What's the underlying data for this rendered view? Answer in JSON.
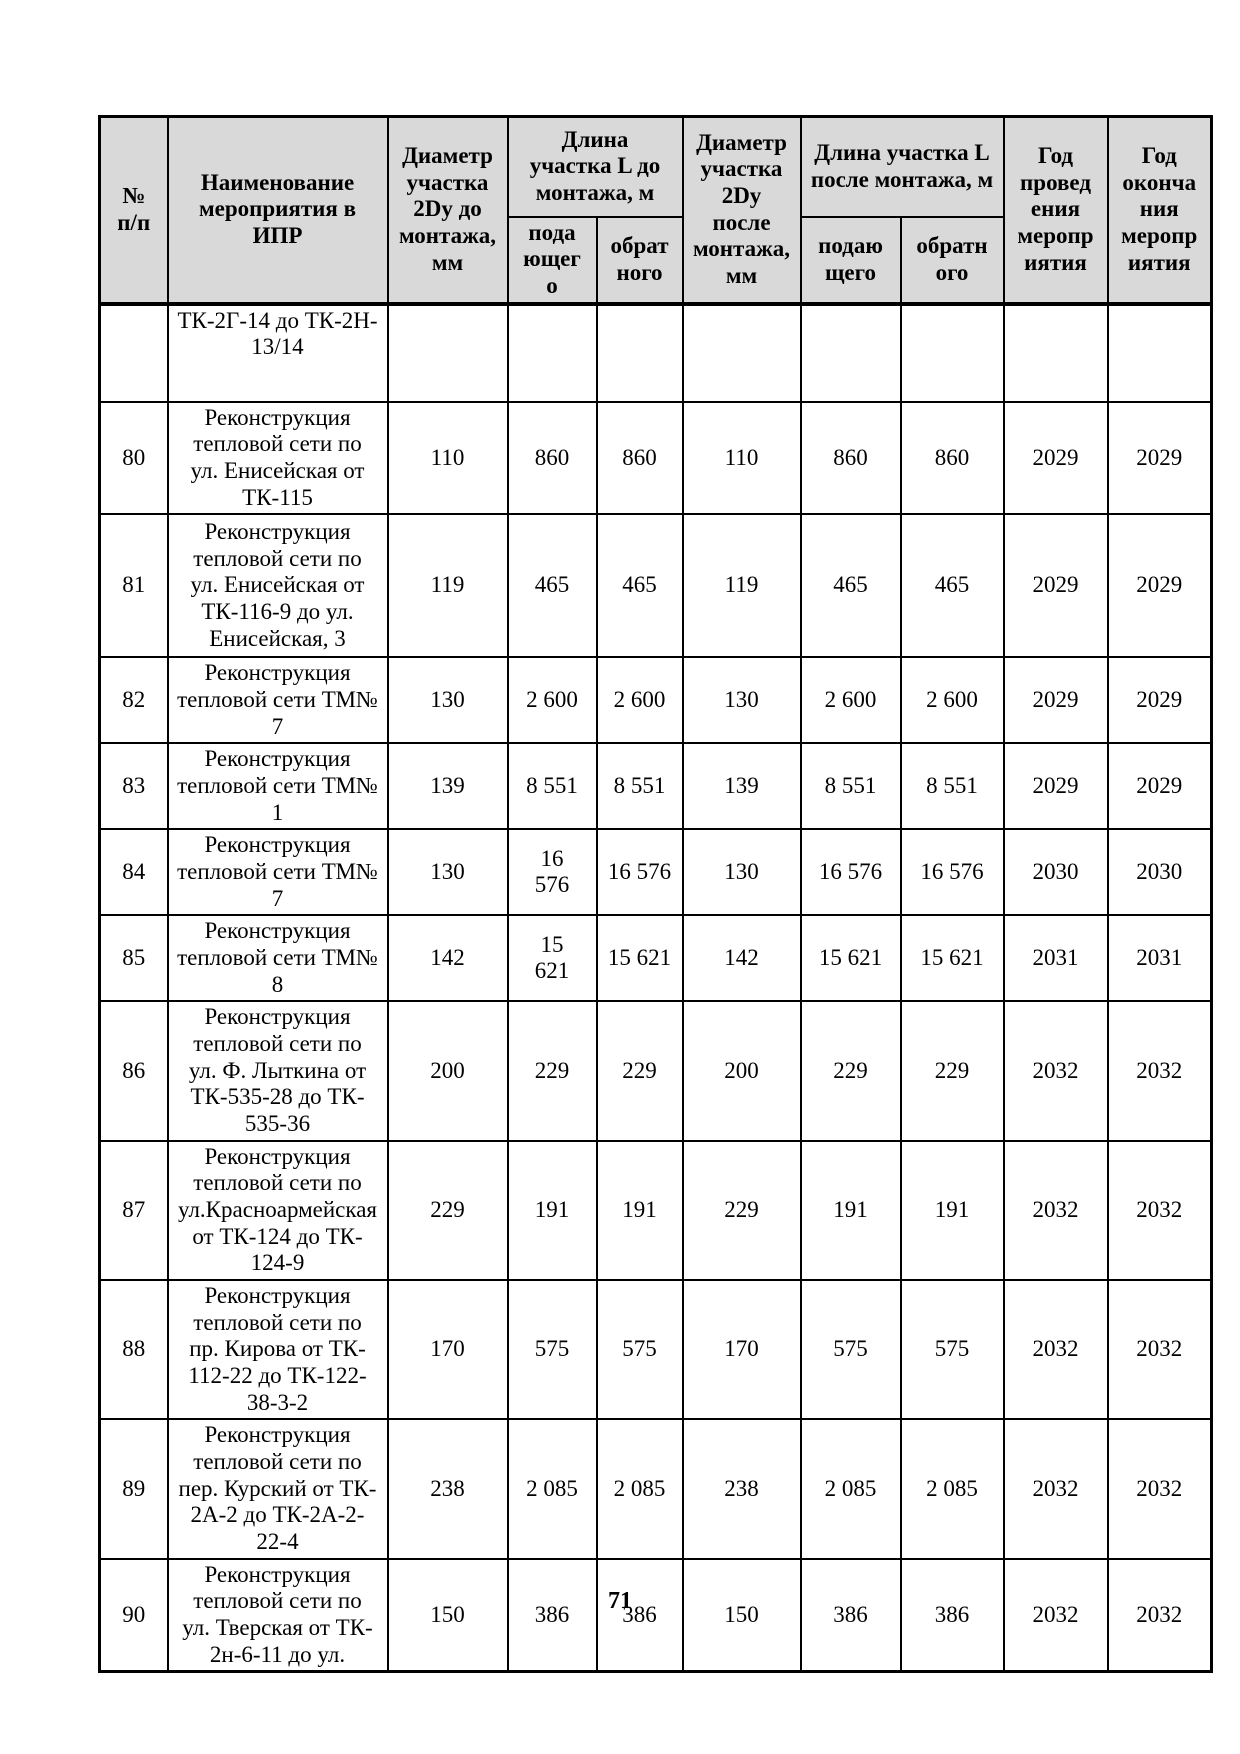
{
  "page": {
    "number": "71",
    "background": "#ffffff"
  },
  "table": {
    "header_bg": "#d9d9d9",
    "header": {
      "col_num": "№\nп/п",
      "col_name": "Наименование\nмероприятия в\nИПР",
      "col_diameter_before": "Диаметр\nучастка\n2Dy до\nмонтажа,\nмм",
      "group_length_before": "Длина\nучастка L до\nмонтажа, м",
      "col_diameter_after": "Диаметр\nучастка\n2Dy\nпосле\nмонтажа,\nмм",
      "group_length_after": "Длина участка L\nпосле монтажа, м",
      "col_year_start": "Год\nпровед\nения\nмеропр\nиятия",
      "col_year_end": "Год\nоконча\nния\nмеропр\nиятия",
      "sub_supply_before": "пода\nющег\nо",
      "sub_return_before": "обрат\nного",
      "sub_supply_after": "подаю\nщего",
      "sub_return_after": "обратн\nого"
    },
    "column_keys": [
      "row-number",
      "event-name",
      "diameter-before",
      "length-before-supply",
      "length-before-return",
      "diameter-after",
      "length-after-supply",
      "length-after-return",
      "year-start",
      "year-end"
    ],
    "rows": [
      [
        "",
        "ТК-2Г-14 до ТК-2Н-\n13/14",
        "",
        "",
        "",
        "",
        "",
        "",
        "",
        ""
      ],
      [
        "80",
        "Реконструкция\nтепловой сети по\nул. Енисейская от\nТК-115",
        "110",
        "860",
        "860",
        "110",
        "860",
        "860",
        "2029",
        "2029"
      ],
      [
        "81",
        "Реконструкция\nтепловой сети по\nул. Енисейская от\nТК-116-9 до ул.\nЕнисейская, 3",
        "119",
        "465",
        "465",
        "119",
        "465",
        "465",
        "2029",
        "2029"
      ],
      [
        "82",
        "Реконструкция\nтепловой сети ТМ№\n7",
        "130",
        "2 600",
        "2 600",
        "130",
        "2 600",
        "2 600",
        "2029",
        "2029"
      ],
      [
        "83",
        "Реконструкция\nтепловой сети ТМ№\n1",
        "139",
        "8 551",
        "8 551",
        "139",
        "8 551",
        "8 551",
        "2029",
        "2029"
      ],
      [
        "84",
        "Реконструкция\nтепловой сети ТМ№\n7",
        "130",
        "16\n576",
        "16 576",
        "130",
        "16 576",
        "16 576",
        "2030",
        "2030"
      ],
      [
        "85",
        "Реконструкция\nтепловой сети ТМ№\n8",
        "142",
        "15\n621",
        "15 621",
        "142",
        "15 621",
        "15 621",
        "2031",
        "2031"
      ],
      [
        "86",
        "Реконструкция\nтепловой сети по\nул. Ф. Лыткина от\nТК-535-28 до ТК-\n535-36",
        "200",
        "229",
        "229",
        "200",
        "229",
        "229",
        "2032",
        "2032"
      ],
      [
        "87",
        "Реконструкция\nтепловой сети по\nул.Красноармейская\nот ТК-124 до ТК-\n124-9",
        "229",
        "191",
        "191",
        "229",
        "191",
        "191",
        "2032",
        "2032"
      ],
      [
        "88",
        "Реконструкция\nтепловой сети по\nпр. Кирова от ТК-\n112-22 до ТК-122-\n38-3-2",
        "170",
        "575",
        "575",
        "170",
        "575",
        "575",
        "2032",
        "2032"
      ],
      [
        "89",
        "Реконструкция\nтепловой сети по\nпер. Курский от ТК-\n2А-2 до ТК-2А-2-\n22-4",
        "238",
        "2 085",
        "2 085",
        "238",
        "2 085",
        "2 085",
        "2032",
        "2032"
      ],
      [
        "90",
        "Реконструкция\nтепловой сети по\nул. Тверская от ТК-\n2н-6-11 до ул.",
        "150",
        "386",
        "386",
        "150",
        "386",
        "386",
        "2032",
        "2032"
      ]
    ]
  }
}
